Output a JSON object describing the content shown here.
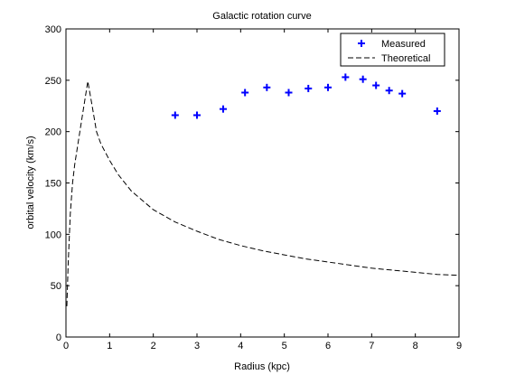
{
  "chart_data": {
    "type": "scatter",
    "title": "Galactic rotation curve",
    "xlabel": "Radius (kpc)",
    "ylabel": "orbital velocity (km/s)",
    "xlim": [
      0,
      9
    ],
    "ylim": [
      0,
      300
    ],
    "xticks": [
      0,
      1,
      2,
      3,
      4,
      5,
      6,
      7,
      8,
      9
    ],
    "yticks": [
      0,
      50,
      100,
      150,
      200,
      250,
      300
    ],
    "grid": false,
    "legend_position": "top-right",
    "series": [
      {
        "name": "Measured",
        "kind": "markers",
        "marker": "plus",
        "color": "#0000ff",
        "x": [
          2.5,
          3.0,
          3.6,
          4.1,
          4.6,
          5.1,
          5.55,
          6.0,
          6.4,
          6.8,
          7.1,
          7.4,
          7.7,
          8.5
        ],
        "y": [
          216,
          216,
          222,
          238,
          243,
          238,
          242,
          243,
          253,
          251,
          245,
          240,
          237,
          220
        ]
      },
      {
        "name": "Theoretical",
        "kind": "line",
        "dash": "dashed",
        "color": "#000000",
        "x": [
          0.02,
          0.05,
          0.1,
          0.15,
          0.2,
          0.3,
          0.4,
          0.5,
          0.6,
          0.7,
          0.8,
          1.0,
          1.2,
          1.5,
          2.0,
          2.5,
          3.0,
          3.5,
          4.0,
          4.5,
          5.0,
          5.5,
          6.0,
          6.5,
          7.0,
          7.5,
          8.0,
          8.5,
          9.0
        ],
        "y": [
          30,
          70,
          120,
          150,
          168,
          195,
          222,
          249,
          225,
          200,
          188,
          172,
          158,
          142,
          124,
          112,
          103,
          95,
          89,
          84,
          80,
          76,
          73,
          70,
          67,
          65,
          63,
          61,
          60
        ]
      }
    ]
  }
}
